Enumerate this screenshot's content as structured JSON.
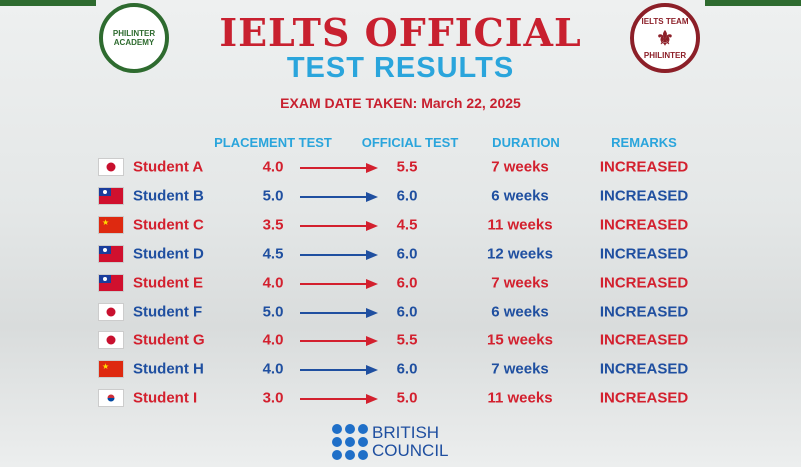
{
  "header": {
    "title": "IELTS OFFICIAL",
    "subtitle": "TEST RESULTS",
    "exam_date": "EXAM DATE TAKEN: March 22, 2025"
  },
  "logos": {
    "left": "PHILINTER ACADEMY",
    "right_top": "IELTS TEAM",
    "right_bottom": "PHILINTER"
  },
  "table": {
    "columns": [
      "PLACEMENT TEST",
      "OFFICIAL TEST",
      "DURATION",
      "REMARKS"
    ],
    "rows": [
      [
        "Student A",
        "4.0",
        "5.5",
        "7 weeks",
        "INCREASED"
      ],
      [
        "Student B",
        "5.0",
        "6.0",
        "6 weeks",
        "INCREASED"
      ],
      [
        "Student C",
        "3.5",
        "4.5",
        "11 weeks",
        "INCREASED"
      ],
      [
        "Student D",
        "4.5",
        "6.0",
        "12 weeks",
        "INCREASED"
      ],
      [
        "Student E",
        "4.0",
        "6.0",
        "7 weeks",
        "INCREASED"
      ],
      [
        "Student F",
        "5.0",
        "6.0",
        "6 weeks",
        "INCREASED"
      ],
      [
        "Student G",
        "4.0",
        "5.5",
        "15 weeks",
        "INCREASED"
      ],
      [
        "Student H",
        "4.0",
        "6.0",
        "7 weeks",
        "INCREASED"
      ],
      [
        "Student I",
        "3.0",
        "5.0",
        "11 weeks",
        "INCREASED"
      ]
    ]
  },
  "footer": {
    "line1": "BRITISH",
    "line2": "COUNCIL"
  }
}
